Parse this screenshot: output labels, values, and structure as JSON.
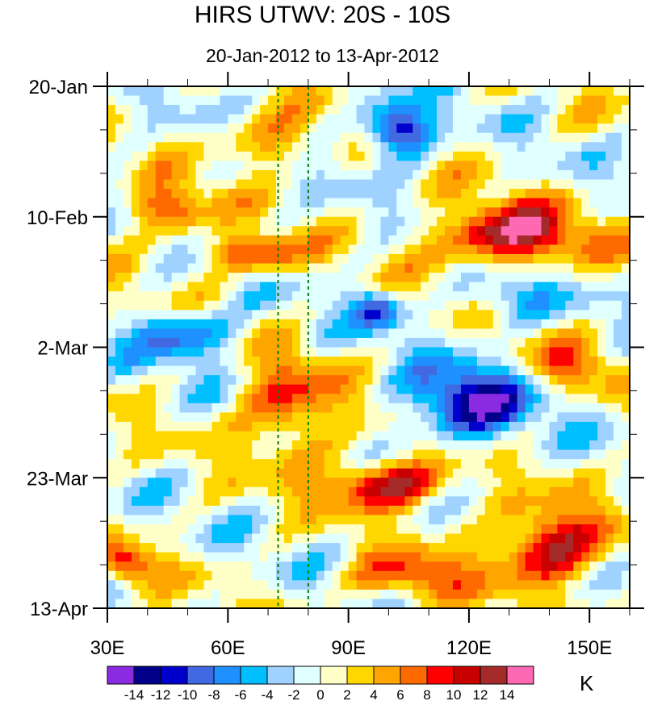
{
  "chart_data": {
    "type": "heatmap",
    "title": "HIRS UTWV: 20S - 10S",
    "subtitle": "20-Jan-2012 to 13-Apr-2012",
    "xlabel": "",
    "ylabel": "",
    "x_ticks": [
      {
        "value": 30,
        "label": "30E"
      },
      {
        "value": 60,
        "label": "60E"
      },
      {
        "value": 90,
        "label": "90E"
      },
      {
        "value": 120,
        "label": "120E"
      },
      {
        "value": 150,
        "label": "150E"
      }
    ],
    "xlim": [
      30,
      160
    ],
    "y_ticks": [
      {
        "value": 0,
        "label": "20-Jan"
      },
      {
        "value": 21,
        "label": "10-Feb"
      },
      {
        "value": 42,
        "label": "2-Mar"
      },
      {
        "value": 63,
        "label": "23-Mar"
      },
      {
        "value": 84,
        "label": "13-Apr"
      }
    ],
    "ylim": [
      0,
      84
    ],
    "reference_lines_lon": [
      72.5,
      80
    ],
    "colorbar": {
      "units": "K",
      "levels": [
        -14,
        -12,
        -10,
        -8,
        -6,
        -4,
        -2,
        0,
        2,
        4,
        6,
        8,
        10,
        12,
        14
      ],
      "level_labels": [
        "-14",
        "-12",
        "-10",
        "-8",
        "-6",
        "-4",
        "-2",
        "0",
        "2",
        "4",
        "6",
        "8",
        "10",
        "12",
        "14"
      ],
      "colors": [
        "#8a2be2",
        "#00008b",
        "#0000cd",
        "#4169e1",
        "#1e90ff",
        "#00bfff",
        "#a0d2ff",
        "#e0ffff",
        "#ffffc8",
        "#ffd700",
        "#ffa500",
        "#ff6a00",
        "#ff0000",
        "#c80000",
        "#a52a2a",
        "#ff69b4"
      ]
    },
    "anomaly_features": [
      {
        "lon": 102,
        "day": 7,
        "value": -15,
        "spread_lon": 8,
        "spread_day": 4
      },
      {
        "lon": 130,
        "day": 24,
        "value": 14,
        "spread_lon": 18,
        "spread_day": 5
      },
      {
        "lon": 66,
        "day": 27,
        "value": 10,
        "spread_lon": 12,
        "spread_day": 3
      },
      {
        "lon": 45,
        "day": 20,
        "value": 9,
        "spread_lon": 10,
        "spread_day": 4
      },
      {
        "lon": 70,
        "day": 9,
        "value": 7,
        "spread_lon": 12,
        "spread_day": 4
      },
      {
        "lon": 120,
        "day": 51,
        "value": -13,
        "spread_lon": 15,
        "spread_day": 6
      },
      {
        "lon": 75,
        "day": 52,
        "value": 9,
        "spread_lon": 12,
        "spread_day": 8
      },
      {
        "lon": 100,
        "day": 64,
        "value": 13,
        "spread_lon": 15,
        "spread_day": 4
      },
      {
        "lon": 140,
        "day": 74,
        "value": 13,
        "spread_lon": 14,
        "spread_day": 6
      },
      {
        "lon": 35,
        "day": 77,
        "value": 9,
        "spread_lon": 7,
        "spread_day": 3
      },
      {
        "lon": 105,
        "day": 79,
        "value": 8,
        "spread_lon": 15,
        "spread_day": 4
      },
      {
        "lon": 50,
        "day": 40,
        "value": -9,
        "spread_lon": 12,
        "spread_day": 4
      },
      {
        "lon": 97,
        "day": 36,
        "value": -10,
        "spread_lon": 6,
        "spread_day": 3
      },
      {
        "lon": 145,
        "day": 45,
        "value": 6,
        "spread_lon": 12,
        "spread_day": 4
      },
      {
        "lon": 130,
        "day": 34,
        "value": -6,
        "spread_lon": 10,
        "spread_day": 4
      }
    ]
  },
  "units_label": "K"
}
